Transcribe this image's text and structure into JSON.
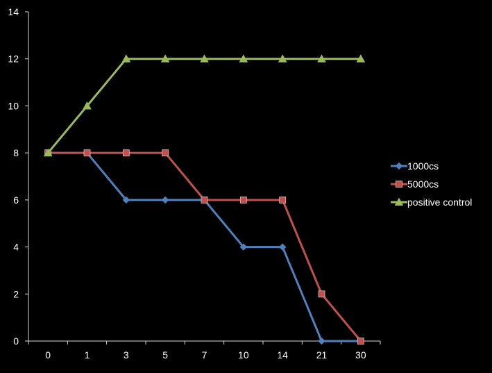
{
  "chart_data": {
    "type": "line",
    "title": "",
    "xlabel": "",
    "ylabel": "",
    "categories": [
      "0",
      "1",
      "3",
      "5",
      "7",
      "10",
      "14",
      "21",
      "30"
    ],
    "ylim": [
      0,
      14
    ],
    "yticks": [
      0,
      2,
      4,
      6,
      8,
      10,
      12,
      14
    ],
    "grid": false,
    "legend_position": "right",
    "background_color": "#000000",
    "axis_color": "#d9d9d9",
    "text_color": "#ffffff",
    "series": [
      {
        "name": "1000cs",
        "values": [
          8,
          8,
          6,
          6,
          6,
          4,
          4,
          0,
          0
        ],
        "color": "#4f81bd",
        "marker": "diamond"
      },
      {
        "name": "5000cs",
        "values": [
          8,
          8,
          8,
          8,
          6,
          6,
          6,
          2,
          0
        ],
        "color": "#c0504d",
        "marker": "square"
      },
      {
        "name": "positive control",
        "values": [
          8,
          10,
          12,
          12,
          12,
          12,
          12,
          12,
          12
        ],
        "color": "#9bbb59",
        "marker": "triangle"
      }
    ]
  }
}
